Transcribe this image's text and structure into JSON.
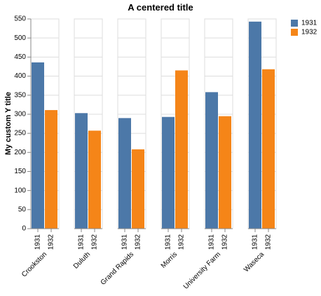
{
  "chart_data": {
    "type": "bar",
    "title": "A centered title",
    "y_label": "My custom Y title",
    "categories": [
      "Crookston",
      "Duluth",
      "Grand Rapids",
      "Morris",
      "University Farm",
      "Waseca"
    ],
    "series": [
      {
        "name": "1931",
        "color": "#4c78a8",
        "values": [
          436,
          303,
          290,
          293,
          358,
          543
        ]
      },
      {
        "name": "1932",
        "color": "#f58518",
        "values": [
          311,
          257,
          208,
          415,
          295,
          418
        ]
      }
    ],
    "ylim": [
      0,
      550
    ],
    "yticks": [
      0,
      50,
      100,
      150,
      200,
      250,
      300,
      350,
      400,
      450,
      500,
      550
    ],
    "grid": true,
    "legend": "top-right"
  }
}
